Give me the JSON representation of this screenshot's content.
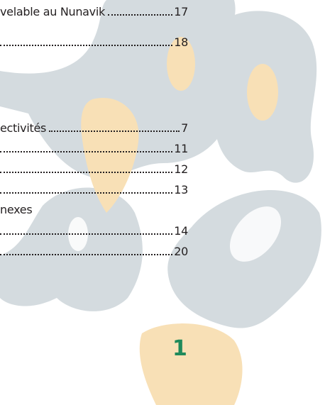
{
  "toc": [
    {
      "label": "velable au Nunavik",
      "page": 17
    },
    {
      "page": 18
    },
    {
      "label": "ectivités",
      "page": 7
    },
    {
      "page": 11
    },
    {
      "page": 12
    },
    {
      "page": 13
    },
    {
      "label": "nexes"
    },
    {
      "page": 14
    },
    {
      "page": 20
    }
  ],
  "page_number": 1
}
